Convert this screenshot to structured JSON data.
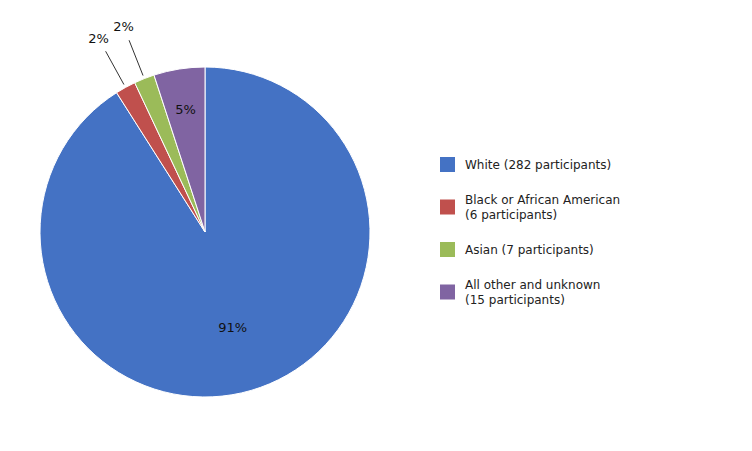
{
  "chart_data": {
    "type": "pie",
    "categories": [
      "White (282 participants)",
      "Black or African American\n(6 participants)",
      "Asian (7 participants)",
      "All other and unknown\n(15 participants)"
    ],
    "values": [
      91,
      2,
      2,
      5
    ],
    "value_labels": [
      "91%",
      "2%",
      "2%",
      "5%"
    ],
    "colors": [
      "#4472C4",
      "#C0504D",
      "#9BBB59",
      "#8064A2"
    ],
    "data_labels": true,
    "legend": "right"
  }
}
